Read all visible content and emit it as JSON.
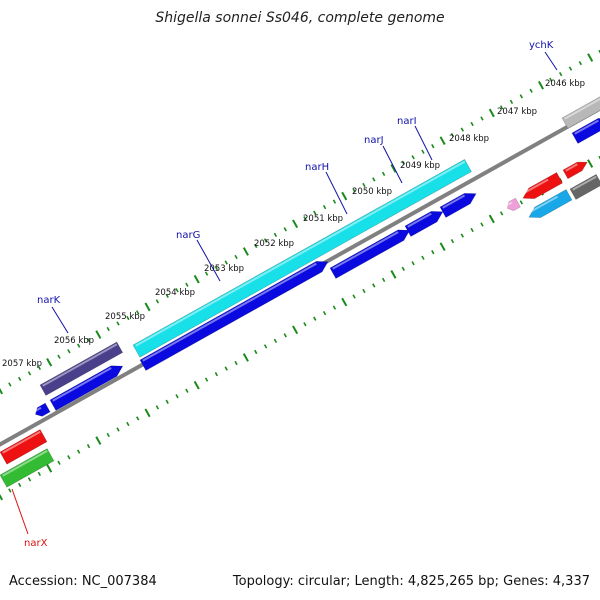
{
  "title": "Shigella sonnei Ss046, complete genome",
  "footer": {
    "accession": "Accession: NC_007384",
    "info": "Topology: circular; Length: 4,825,265 bp; Genes: 4,337"
  },
  "colors": {
    "backbone": "#808080",
    "tick": "#1a8a1a",
    "blue_gene": "#0a0ae0",
    "cyan_gene": "#18e0e8",
    "navy_gene": "#4a3f8a",
    "red_gene": "#ee1111",
    "green_gene": "#33bb33",
    "gray_gene": "#666666",
    "lightgray_gene": "#b8b8b8",
    "pink_gene": "#f0a0d8",
    "skyblue_gene": "#18a8e8",
    "label_blue": "#1111aa",
    "label_red": "#dd1111"
  },
  "ticks": [
    "2046 kbp",
    "2047 kbp",
    "2048 kbp",
    "2049 kbp",
    "2050 kbp",
    "2051 kbp",
    "2052 kbp",
    "2053 kbp",
    "2054 kbp",
    "2055 kbp",
    "2056 kbp",
    "2057 kbp"
  ],
  "genes": [
    {
      "name": "ychK",
      "color": "label_blue"
    },
    {
      "name": "narI",
      "color": "label_blue"
    },
    {
      "name": "narJ",
      "color": "label_blue"
    },
    {
      "name": "narH",
      "color": "label_blue"
    },
    {
      "name": "narG",
      "color": "label_blue"
    },
    {
      "name": "narK",
      "color": "label_blue"
    },
    {
      "name": "narX",
      "color": "label_red"
    }
  ]
}
